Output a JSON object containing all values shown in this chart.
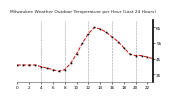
{
  "title": "Milwaukee Weather Outdoor Temperature per Hour (Last 24 Hours)",
  "hours": [
    0,
    1,
    2,
    3,
    4,
    5,
    6,
    7,
    8,
    9,
    10,
    11,
    12,
    13,
    14,
    15,
    16,
    17,
    18,
    19,
    20,
    21,
    22,
    23
  ],
  "temps": [
    41,
    41,
    41,
    41,
    40,
    39,
    38,
    37,
    38,
    42,
    48,
    55,
    61,
    65,
    64,
    62,
    59,
    56,
    52,
    48,
    47,
    47,
    46,
    45
  ],
  "line_color": "#cc0000",
  "marker_color": "#000000",
  "bg_color": "#ffffff",
  "plot_bg": "#ffffff",
  "grid_color": "#999999",
  "ylim": [
    30,
    70
  ],
  "yticks": [
    35,
    45,
    55,
    65
  ],
  "xlim": [
    0,
    23
  ],
  "xticks": [
    0,
    2,
    4,
    6,
    8,
    10,
    12,
    14,
    16,
    18,
    20,
    22
  ],
  "title_fontsize": 3.2,
  "tick_fontsize": 3.0,
  "vgrid_hours": [
    4,
    8,
    12,
    16,
    20
  ]
}
